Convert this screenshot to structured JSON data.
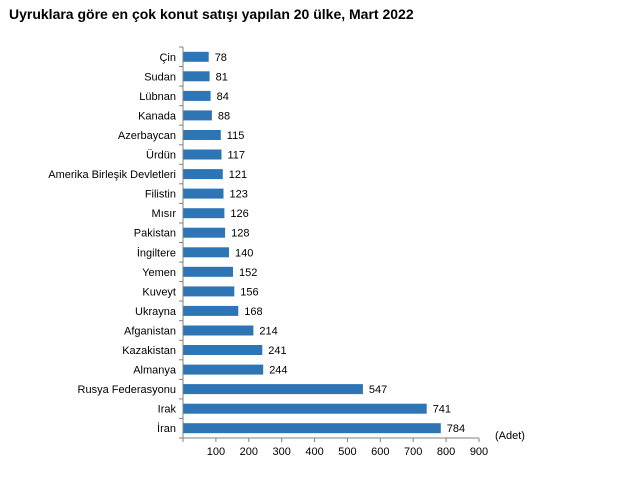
{
  "chart_data": {
    "type": "bar",
    "orientation": "horizontal",
    "title": "Uyruklara göre en çok konut satışı yapılan 20 ülke, Mart 2022",
    "xlabel": "(Adet)",
    "ylabel": "",
    "categories": [
      "Çin",
      "Sudan",
      "Lübnan",
      "Kanada",
      "Azerbaycan",
      "Ürdün",
      "Amerika Birleşik Devletleri",
      "Filistin",
      "Mısır",
      "Pakistan",
      "İngiltere",
      "Yemen",
      "Kuveyt",
      "Ukrayna",
      "Afganistan",
      "Kazakistan",
      "Almanya",
      "Rusya Federasyonu",
      "Irak",
      "İran"
    ],
    "values": [
      78,
      81,
      84,
      88,
      115,
      117,
      121,
      123,
      126,
      128,
      140,
      152,
      156,
      168,
      214,
      241,
      244,
      547,
      741,
      784
    ],
    "xlim": [
      0,
      900
    ],
    "xticks": [
      100,
      200,
      300,
      400,
      500,
      600,
      700,
      800,
      900
    ],
    "grid": false,
    "legend": "none",
    "bar_color": "#2E75B6",
    "axis_color": "#808080"
  }
}
